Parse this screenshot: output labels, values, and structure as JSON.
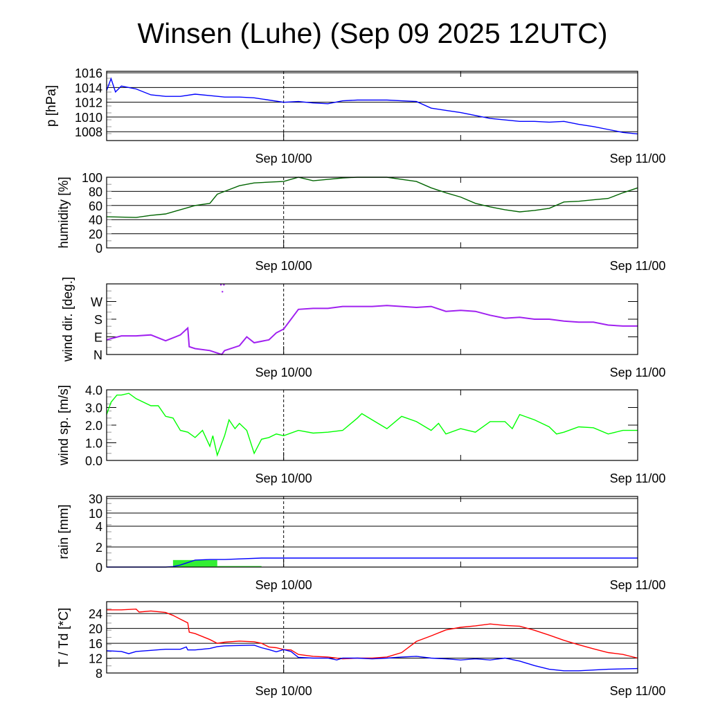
{
  "title": "Winsen (Luhe) (Sep 09 2025 12UTC)",
  "chart_data": [
    {
      "type": "line",
      "id": "pressure",
      "ylabel": "p [hPa]",
      "x_unit": "hours since Sep 09 12UTC",
      "xlim": [
        0,
        36
      ],
      "xtick_labels": [
        {
          "x": 12,
          "label": "Sep 10/00"
        },
        {
          "x": 36,
          "label": "Sep 11/00"
        }
      ],
      "ylim": [
        1006.8,
        1016.2
      ],
      "yticks": [
        {
          "v": 1008,
          "label": "1008"
        },
        {
          "v": 1010,
          "label": "1010"
        },
        {
          "v": 1012,
          "label": "1012"
        },
        {
          "v": 1014,
          "label": "1014"
        },
        {
          "v": 1016,
          "label": "1016"
        }
      ],
      "grid": true,
      "series": [
        {
          "name": "pressure",
          "color": "#0000ff",
          "x": [
            0,
            0.3,
            0.6,
            1,
            2,
            3,
            4,
            5,
            6,
            7,
            8,
            9,
            10,
            11,
            12,
            13,
            14,
            15,
            16,
            17,
            18,
            19,
            20,
            21,
            22,
            23,
            24,
            25,
            26,
            27,
            28,
            29,
            30,
            31,
            32,
            33,
            34,
            35,
            36
          ],
          "y": [
            1013.6,
            1015.2,
            1013.4,
            1014.2,
            1013.8,
            1013.0,
            1012.8,
            1012.8,
            1013.1,
            1012.9,
            1012.7,
            1012.7,
            1012.6,
            1012.3,
            1012.0,
            1012.1,
            1011.9,
            1011.8,
            1012.2,
            1012.3,
            1012.3,
            1012.3,
            1012.2,
            1012.1,
            1011.2,
            1010.9,
            1010.6,
            1010.2,
            1009.8,
            1009.6,
            1009.4,
            1009.4,
            1009.3,
            1009.4,
            1009.0,
            1008.7,
            1008.3,
            1007.9,
            1007.7
          ]
        }
      ]
    },
    {
      "type": "line",
      "id": "humidity",
      "ylabel": "humidity [%]",
      "xlim": [
        0,
        36
      ],
      "xtick_labels": [
        {
          "x": 12,
          "label": "Sep 10/00"
        },
        {
          "x": 36,
          "label": "Sep 11/00"
        }
      ],
      "ylim": [
        0,
        100
      ],
      "yticks": [
        {
          "v": 0,
          "label": "0"
        },
        {
          "v": 20,
          "label": "20"
        },
        {
          "v": 40,
          "label": "40"
        },
        {
          "v": 60,
          "label": "60"
        },
        {
          "v": 80,
          "label": "80"
        },
        {
          "v": 100,
          "label": "100"
        }
      ],
      "grid": true,
      "series": [
        {
          "name": "humidity",
          "color": "#006400",
          "x": [
            0,
            1,
            2,
            3,
            4,
            5,
            6,
            7,
            7.5,
            8,
            9,
            10,
            11,
            12,
            13,
            14,
            15,
            16,
            17,
            18,
            19,
            20,
            21,
            22,
            23,
            24,
            25,
            26,
            27,
            28,
            29,
            30,
            31,
            32,
            33,
            34,
            35,
            36
          ],
          "y": [
            44,
            43.5,
            43,
            46,
            48,
            54,
            60,
            63,
            76,
            80,
            88,
            92,
            93,
            94,
            100,
            95,
            97,
            99,
            100,
            100,
            100,
            97,
            94,
            85,
            78,
            72,
            63,
            58,
            54,
            51,
            53,
            56,
            65,
            66,
            68,
            70,
            78,
            85
          ]
        }
      ]
    },
    {
      "type": "scatter",
      "id": "wind_direction",
      "ylabel": "wind dir. [deg.]",
      "xlim": [
        0,
        36
      ],
      "xtick_labels": [
        {
          "x": 12,
          "label": "Sep 10/00"
        },
        {
          "x": 36,
          "label": "Sep 11/00"
        }
      ],
      "ylim": [
        0,
        360
      ],
      "yticks": [
        {
          "v": 0,
          "label": "N"
        },
        {
          "v": 90,
          "label": "E"
        },
        {
          "v": 180,
          "label": "S"
        },
        {
          "v": 270,
          "label": "W"
        }
      ],
      "grid": false,
      "series": [
        {
          "name": "wind direction",
          "color": "#a020f0",
          "x": [
            0,
            1,
            2,
            3,
            4,
            5,
            5.5,
            5.6,
            6,
            7,
            7.8,
            8,
            9,
            9.5,
            10,
            11,
            11.5,
            12,
            13,
            14,
            15,
            16,
            17,
            18,
            19,
            20,
            21,
            22,
            23,
            24,
            25,
            26,
            27,
            28,
            29,
            30,
            31,
            32,
            33,
            34,
            35,
            36
          ],
          "y": [
            75,
            95,
            95,
            100,
            70,
            100,
            135,
            40,
            30,
            20,
            0,
            20,
            45,
            90,
            60,
            75,
            110,
            130,
            230,
            235,
            235,
            245,
            245,
            245,
            250,
            245,
            240,
            245,
            220,
            225,
            220,
            200,
            185,
            190,
            180,
            180,
            170,
            165,
            165,
            150,
            145,
            145
          ]
        },
        {
          "name": "wind direction (wrapped)",
          "color": "#a020f0",
          "x": [
            7.75,
            7.85,
            7.95
          ],
          "y": [
            355,
            320,
            355
          ]
        }
      ]
    },
    {
      "type": "line",
      "id": "wind_speed",
      "ylabel": "wind sp. [m/s]",
      "xlim": [
        0,
        36
      ],
      "xtick_labels": [
        {
          "x": 12,
          "label": "Sep 10/00"
        },
        {
          "x": 36,
          "label": "Sep 11/00"
        }
      ],
      "ylim": [
        0,
        4
      ],
      "yticks": [
        {
          "v": 0,
          "label": "0.0"
        },
        {
          "v": 1,
          "label": "1.0"
        },
        {
          "v": 2,
          "label": "2.0"
        },
        {
          "v": 3,
          "label": "3.0"
        },
        {
          "v": 4,
          "label": "4.0"
        }
      ],
      "grid": false,
      "series": [
        {
          "name": "wind speed",
          "color": "#00ff00",
          "x": [
            0,
            0.3,
            0.7,
            1,
            1.5,
            2,
            3,
            3.5,
            4,
            4.5,
            5,
            5.5,
            6,
            6.5,
            7,
            7.2,
            7.5,
            8,
            8.3,
            8.7,
            9,
            9.5,
            10,
            10.5,
            11,
            11.5,
            12,
            13,
            14,
            15,
            16,
            17,
            17.3,
            18,
            19,
            20,
            21,
            22,
            22.5,
            23,
            24,
            25,
            26,
            27,
            27.5,
            28,
            29,
            30,
            30.5,
            31,
            32,
            33,
            34,
            35,
            36
          ],
          "y": [
            2.6,
            3.3,
            3.7,
            3.7,
            3.8,
            3.5,
            3.1,
            3.1,
            2.5,
            2.4,
            1.7,
            1.6,
            1.3,
            1.7,
            0.8,
            1.4,
            0.3,
            1.4,
            2.3,
            1.8,
            2.1,
            1.7,
            0.4,
            1.2,
            1.3,
            1.5,
            1.4,
            1.7,
            1.55,
            1.6,
            1.7,
            2.4,
            2.65,
            2.3,
            1.8,
            2.5,
            2.2,
            1.7,
            2.1,
            1.5,
            1.8,
            1.6,
            2.2,
            2.2,
            1.8,
            2.6,
            2.3,
            1.9,
            1.5,
            1.6,
            1.9,
            1.85,
            1.5,
            1.7,
            1.7
          ]
        }
      ]
    },
    {
      "type": "bar",
      "id": "rain",
      "ylabel": "rain [mm]",
      "xlim": [
        0,
        36
      ],
      "xtick_labels": [
        {
          "x": 12,
          "label": "Sep 10/00"
        },
        {
          "x": 36,
          "label": "Sep 11/00"
        }
      ],
      "yscale": "nonlinear",
      "ylim": [
        0,
        30
      ],
      "yticks": [
        {
          "v": 0,
          "label": "0"
        },
        {
          "v": 2,
          "label": "2"
        },
        {
          "v": 4,
          "label": "4"
        },
        {
          "v": 10,
          "label": "10"
        },
        {
          "v": 30,
          "label": "30"
        }
      ],
      "grid": true,
      "bars": {
        "name": "rain amount",
        "color": "#33ee33",
        "intervals": [
          [
            4.5,
            7.5
          ],
          [
            7.5,
            10.5
          ]
        ],
        "values": [
          0.7,
          0.1
        ]
      },
      "series": [
        {
          "name": "accumulated rain",
          "color": "#0000ff",
          "x": [
            0,
            4,
            4.5,
            5,
            6,
            7,
            8,
            10.5,
            36
          ],
          "y": [
            0,
            0,
            0.05,
            0.2,
            0.7,
            0.75,
            0.75,
            0.9,
            0.9
          ]
        }
      ]
    },
    {
      "type": "line",
      "id": "temperature",
      "ylabel": "T / Td [*C]",
      "xlim": [
        0,
        36
      ],
      "xtick_labels": [
        {
          "x": 12,
          "label": "Sep 10/00"
        },
        {
          "x": 36,
          "label": "Sep 11/00"
        }
      ],
      "ylim": [
        8,
        27.2
      ],
      "yticks": [
        {
          "v": 8,
          "label": "8"
        },
        {
          "v": 12,
          "label": "12"
        },
        {
          "v": 16,
          "label": "16"
        },
        {
          "v": 20,
          "label": "20"
        },
        {
          "v": 24,
          "label": "24"
        }
      ],
      "grid": true,
      "series": [
        {
          "name": "T",
          "color": "#ff0000",
          "x": [
            0,
            1,
            2,
            2.2,
            3,
            4,
            4.5,
            5,
            5.5,
            5.6,
            6,
            7,
            7.5,
            8,
            9,
            10,
            10.5,
            11,
            11.5,
            12,
            12.5,
            13,
            14,
            15,
            16,
            17,
            18,
            19,
            20,
            21,
            22,
            23,
            24,
            25,
            26,
            27,
            28,
            29,
            30,
            31,
            32,
            33,
            34,
            35,
            36
          ],
          "y": [
            25,
            25,
            25.2,
            24.4,
            24.7,
            24.3,
            23.5,
            22.5,
            21.5,
            19,
            18.6,
            17,
            16,
            16.3,
            16.6,
            16.4,
            16,
            15,
            14.8,
            14.3,
            14.2,
            13,
            12.5,
            12.3,
            11.8,
            12,
            12,
            12.3,
            13.5,
            16.5,
            18,
            19.6,
            20.3,
            20.7,
            21.2,
            20.8,
            20.6,
            19.5,
            18.2,
            16.8,
            15.6,
            14.5,
            13.5,
            13,
            12
          ]
        },
        {
          "name": "Td",
          "color": "#0000ff",
          "x": [
            0,
            1,
            1.5,
            2,
            4,
            5,
            5.4,
            5.5,
            6,
            7,
            7.5,
            8,
            9,
            10,
            10.5,
            11,
            11.5,
            12,
            12.5,
            13,
            14,
            15,
            15.6,
            16,
            17,
            18,
            19,
            20,
            21,
            22,
            23,
            24,
            25,
            26,
            27,
            28,
            29,
            30,
            31,
            32,
            33,
            34,
            35,
            36
          ],
          "y": [
            14,
            13.8,
            13.2,
            13.8,
            14.4,
            14.4,
            15,
            14.2,
            14.2,
            14.6,
            15.1,
            15.3,
            15.4,
            15.5,
            14.8,
            14.3,
            13.7,
            14.3,
            13.8,
            12.2,
            12,
            12,
            11.5,
            12,
            12,
            11.8,
            12,
            12.3,
            12.5,
            12,
            11.8,
            11.5,
            11.8,
            11.5,
            12,
            11.2,
            10,
            9,
            8.6,
            8.6,
            8.8,
            9,
            9.1,
            9.2
          ]
        }
      ]
    }
  ]
}
